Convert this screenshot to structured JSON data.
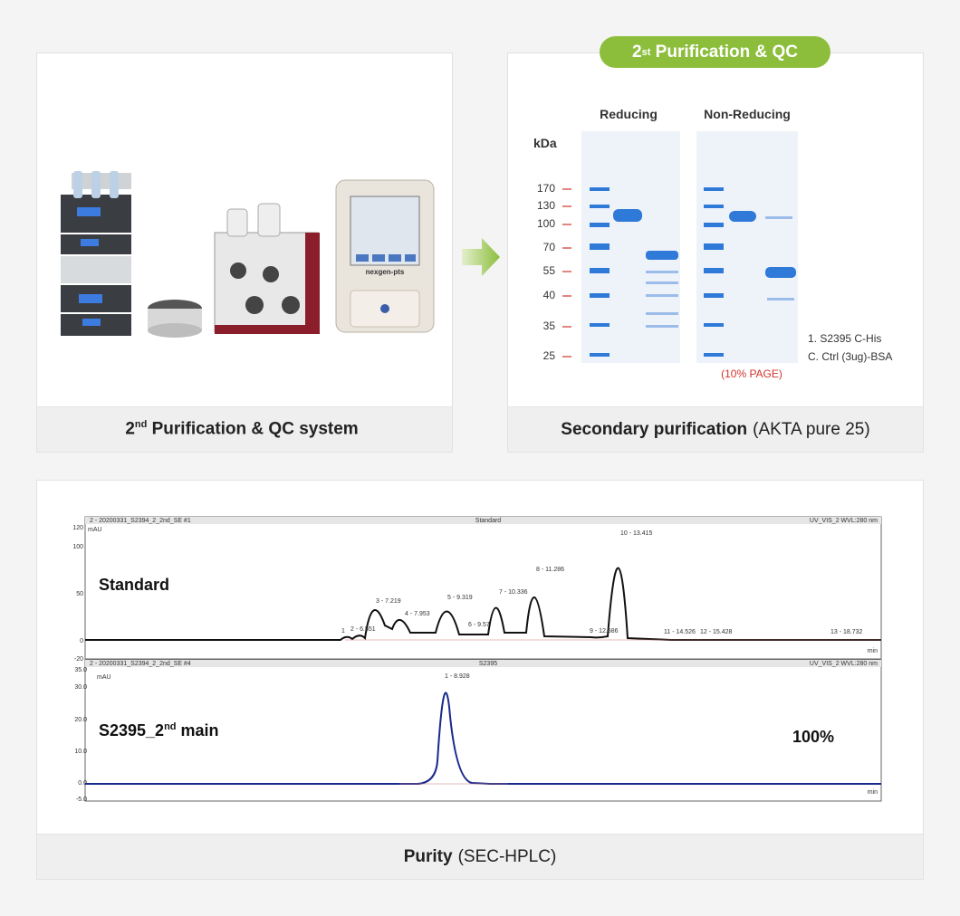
{
  "system_panel": {
    "caption": {
      "num": "2",
      "sup": "nd",
      "text": "Purification & QC system"
    },
    "device_label": "nexgen-pts"
  },
  "gel_panel": {
    "badge": {
      "num": "2",
      "sup": "st",
      "text": "Purification & QC"
    },
    "lane_groups": [
      "Reducing",
      "Non-Reducing"
    ],
    "unit": "kDa",
    "markers": [
      "170",
      "130",
      "100",
      "70",
      "55",
      "40",
      "35",
      "25"
    ],
    "legend": [
      "1. S2395 C-His",
      "C. Ctrl (3ug)-BSA"
    ],
    "gel_note": "(10% PAGE)",
    "caption": {
      "bold": "Secondary purification",
      "normal": "(AKTA pure 25)"
    }
  },
  "hplc_panel": {
    "upper": {
      "header_left": "2 - 20200331_S2394_2_2nd_SE #1",
      "header_center": "Standard",
      "header_right": "UV_VIS_2 WVL:280 nm",
      "y_unit": "mAU",
      "x_unit": "min",
      "yticks": [
        "120",
        "100",
        "50",
        "0",
        "-20"
      ],
      "label": "Standard",
      "peaks": [
        "1",
        "2 - 6.551",
        "3 - 7.219",
        "4 - 7.953",
        "5 - 9.319",
        "6 - 9.57",
        "7 - 10.336",
        "8 - 11.286",
        "9 - 12.586",
        "10 - 13.415",
        "11 - 14.526",
        "12 - 15.428",
        "13 - 18.732"
      ]
    },
    "lower": {
      "header_left": "2 - 20200331_S2394_2_2nd_SE #4",
      "header_center": "S2395",
      "header_right": "UV_VIS_2 WVL:280 nm",
      "y_unit": "mAU",
      "x_unit": "min",
      "yticks": [
        "35.0",
        "30.0",
        "20.0",
        "10.0",
        "0.0",
        "-5.0"
      ],
      "label": {
        "main": "S2395_2",
        "sup": "nd",
        "rest": "main"
      },
      "purity": "100%",
      "peaks": [
        "1 - 8.928"
      ]
    },
    "caption": {
      "bold": "Purity",
      "normal": "(SEC-HPLC)"
    }
  }
}
